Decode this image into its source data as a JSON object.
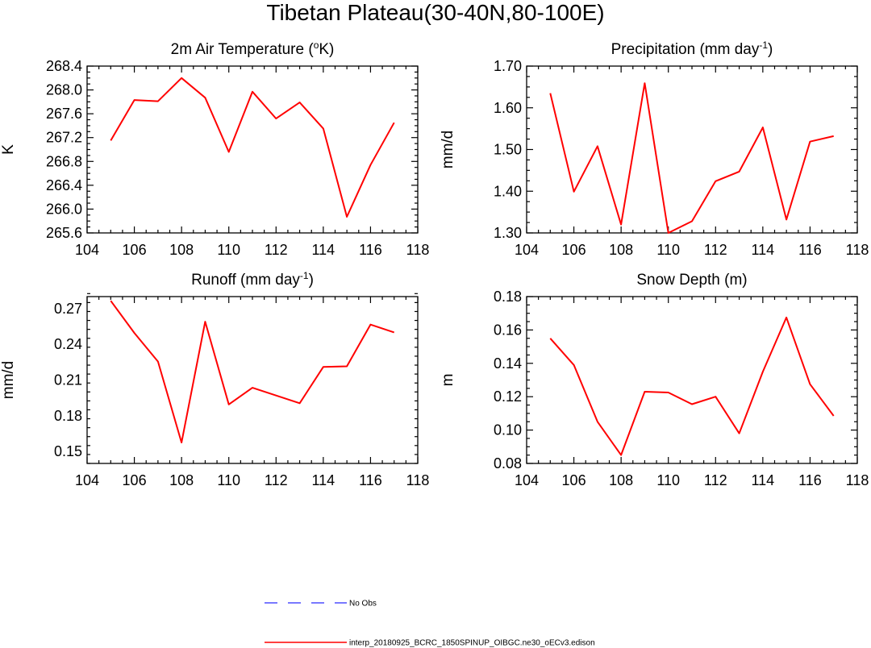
{
  "figure": {
    "title": "Tibetan Plateau(30-40N,80-100E)"
  },
  "chart_data": [
    {
      "type": "line",
      "title": "2m Air Temperature (",
      "title_sup": "o",
      "title_end": "K)",
      "xlabel": "",
      "ylabel": "K",
      "xlim": [
        104,
        118
      ],
      "ylim": [
        265.6,
        268.4
      ],
      "xticks": [
        104,
        106,
        108,
        110,
        112,
        114,
        116,
        118
      ],
      "xtick_labels": [
        "104",
        "106",
        "108",
        "110",
        "112",
        "114",
        "116",
        "118"
      ],
      "yticks": [
        265.6,
        266.0,
        266.4,
        266.8,
        267.2,
        267.6,
        268.0,
        268.4
      ],
      "ytick_labels": [
        "265.6",
        "266.0",
        "266.4",
        "266.8",
        "267.2",
        "267.6",
        "268.0",
        "268.4"
      ],
      "series": [
        {
          "color": "#ff0000",
          "x": [
            105,
            106,
            107,
            108,
            109,
            110,
            111,
            112,
            113,
            114,
            115,
            116,
            117
          ],
          "y": [
            267.15,
            267.83,
            267.81,
            268.2,
            267.87,
            266.96,
            267.97,
            267.52,
            267.79,
            267.35,
            265.87,
            266.74,
            267.45
          ]
        }
      ]
    },
    {
      "type": "line",
      "title": "Precipitation (mm day",
      "title_sup": "-1",
      "title_end": ")",
      "xlabel": "",
      "ylabel": "mm/d",
      "xlim": [
        104,
        118
      ],
      "ylim": [
        1.3,
        1.7
      ],
      "xticks": [
        104,
        106,
        108,
        110,
        112,
        114,
        116,
        118
      ],
      "xtick_labels": [
        "104",
        "106",
        "108",
        "110",
        "112",
        "114",
        "116",
        "118"
      ],
      "yticks": [
        1.3,
        1.4,
        1.5,
        1.6,
        1.7
      ],
      "ytick_labels": [
        "1.30",
        "1.40",
        "1.50",
        "1.60",
        "1.70"
      ],
      "series": [
        {
          "color": "#ff0000",
          "x": [
            105,
            106,
            107,
            108,
            109,
            110,
            111,
            112,
            113,
            114,
            115,
            116,
            117
          ],
          "y": [
            1.635,
            1.399,
            1.508,
            1.32,
            1.659,
            1.3,
            1.328,
            1.424,
            1.447,
            1.553,
            1.332,
            1.519,
            1.532
          ]
        }
      ]
    },
    {
      "type": "line",
      "title": "Runoff (mm day",
      "title_sup": "-1",
      "title_end": ")",
      "xlabel": "",
      "ylabel": "mm/d",
      "xlim": [
        104,
        118
      ],
      "ylim": [
        0.14,
        0.28
      ],
      "xticks": [
        104,
        106,
        108,
        110,
        112,
        114,
        116,
        118
      ],
      "xtick_labels": [
        "104",
        "106",
        "108",
        "110",
        "112",
        "114",
        "116",
        "118"
      ],
      "yticks": [
        0.15,
        0.18,
        0.21,
        0.24,
        0.27
      ],
      "ytick_labels": [
        "0.15",
        "0.18",
        "0.21",
        "0.24",
        "0.27"
      ],
      "series": [
        {
          "color": "#ff0000",
          "x": [
            105,
            106,
            107,
            108,
            109,
            110,
            111,
            112,
            113,
            114,
            115,
            116,
            117
          ],
          "y": [
            0.2765,
            0.2495,
            0.2255,
            0.1575,
            0.259,
            0.1895,
            0.2035,
            0.197,
            0.1905,
            0.221,
            0.2215,
            0.2565,
            0.25
          ]
        }
      ]
    },
    {
      "type": "line",
      "title": "Snow Depth (m)",
      "title_sup": "",
      "title_end": "",
      "xlabel": "",
      "ylabel": "m",
      "xlim": [
        104,
        118
      ],
      "ylim": [
        0.08,
        0.18
      ],
      "xticks": [
        104,
        106,
        108,
        110,
        112,
        114,
        116,
        118
      ],
      "xtick_labels": [
        "104",
        "106",
        "108",
        "110",
        "112",
        "114",
        "116",
        "118"
      ],
      "yticks": [
        0.08,
        0.1,
        0.12,
        0.14,
        0.16,
        0.18
      ],
      "ytick_labels": [
        "0.08",
        "0.10",
        "0.12",
        "0.14",
        "0.16",
        "0.18"
      ],
      "series": [
        {
          "color": "#ff0000",
          "x": [
            105,
            106,
            107,
            108,
            109,
            110,
            111,
            112,
            113,
            114,
            115,
            116,
            117
          ],
          "y": [
            0.155,
            0.139,
            0.105,
            0.085,
            0.123,
            0.1225,
            0.1155,
            0.12,
            0.098,
            0.135,
            0.1675,
            0.1275,
            0.1085
          ]
        }
      ]
    }
  ],
  "legend": {
    "items": [
      {
        "label": "No Obs",
        "color": "#4d4dff",
        "dash": "dashed"
      },
      {
        "label": "interp_20180925_BCRC_1850SPINUP_OIBGC.ne30_oECv3.edison",
        "color": "#ff0000",
        "dash": "solid"
      }
    ]
  }
}
